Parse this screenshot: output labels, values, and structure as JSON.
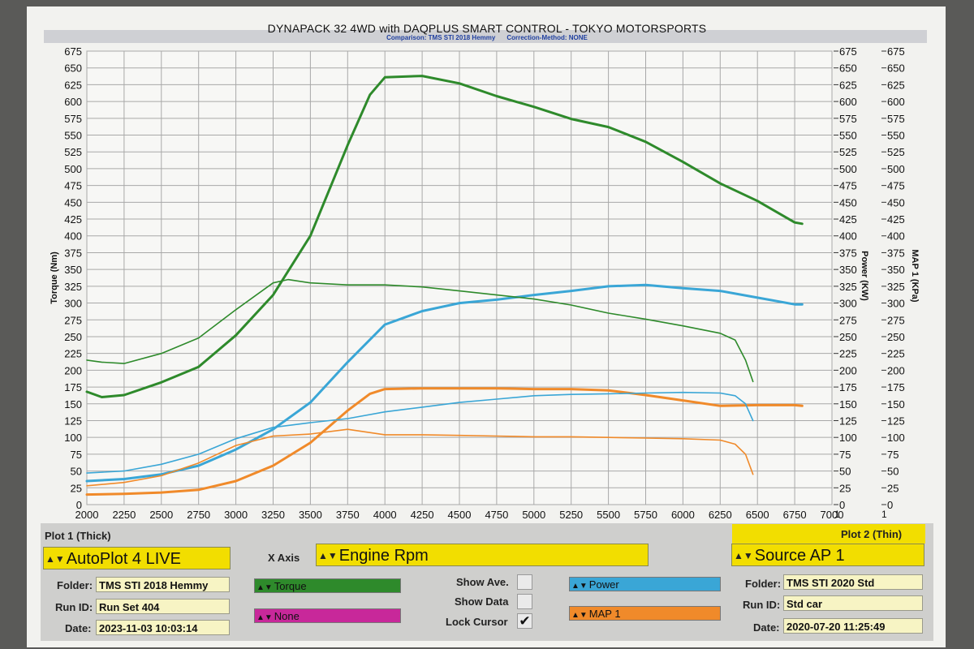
{
  "header": {
    "title": "DYNAPACK 32 4WD with DAQPLUS SMART CONTROL - TOKYO MOTORSPORTS",
    "comparison": "Comparison: TMS STI 2018 Hemmy",
    "correction": "Correction-Method: NONE"
  },
  "axes": {
    "left_label": "Torque (Nm)",
    "power_label": "Power (KW)",
    "map_label": "MAP 1 (KPa)",
    "y_ticks": [
      "0",
      "25",
      "50",
      "75",
      "100",
      "125",
      "150",
      "175",
      "200",
      "225",
      "250",
      "275",
      "300",
      "325",
      "350",
      "375",
      "400",
      "425",
      "450",
      "475",
      "500",
      "525",
      "550",
      "575",
      "600",
      "625",
      "650",
      "675"
    ],
    "x_ticks": [
      "2000",
      "2250",
      "2500",
      "2750",
      "3000",
      "3250",
      "3500",
      "3750",
      "4000",
      "4250",
      "4500",
      "4750",
      "5000",
      "5250",
      "5500",
      "5750",
      "6000",
      "6250",
      "6500",
      "6750",
      "7000"
    ],
    "power_extra_tick": "1",
    "map_extra_tick": "1"
  },
  "chart_data": {
    "type": "line",
    "x_unit": "Engine Rpm",
    "xlim": [
      2000,
      7000
    ],
    "ylim": [
      0,
      675
    ],
    "grid": true,
    "series": [
      {
        "name": "Torque",
        "plot": "Plot 1 (Thick)",
        "color": "#2e8a2b",
        "thick": true,
        "x": [
          2000,
          2100,
          2250,
          2500,
          2750,
          3000,
          3250,
          3500,
          3750,
          3900,
          4000,
          4250,
          4500,
          4750,
          5000,
          5250,
          5500,
          5750,
          6000,
          6250,
          6500,
          6750,
          6800
        ],
        "y": [
          168,
          160,
          163,
          182,
          205,
          252,
          312,
          400,
          535,
          610,
          636,
          638,
          627,
          608,
          592,
          574,
          562,
          540,
          510,
          478,
          452,
          420,
          418
        ]
      },
      {
        "name": "Power",
        "plot": "Plot 1 (Thick)",
        "color": "#3aa6d6",
        "thick": true,
        "x": [
          2000,
          2250,
          2500,
          2750,
          3000,
          3250,
          3500,
          3750,
          4000,
          4250,
          4500,
          4750,
          5000,
          5250,
          5500,
          5750,
          6000,
          6250,
          6500,
          6750,
          6800
        ],
        "y": [
          35,
          38,
          45,
          58,
          82,
          112,
          152,
          212,
          268,
          288,
          300,
          305,
          312,
          318,
          325,
          327,
          322,
          318,
          308,
          298,
          298
        ]
      },
      {
        "name": "MAP 1",
        "plot": "Plot 1 (Thick)",
        "color": "#f08a2a",
        "thick": true,
        "x": [
          2000,
          2250,
          2500,
          2750,
          3000,
          3250,
          3500,
          3750,
          3900,
          4000,
          4250,
          4500,
          4750,
          5000,
          5250,
          5500,
          5750,
          6000,
          6250,
          6500,
          6750,
          6800
        ],
        "y": [
          15,
          16,
          18,
          22,
          35,
          58,
          92,
          140,
          165,
          172,
          173,
          173,
          173,
          172,
          172,
          170,
          163,
          155,
          147,
          148,
          148,
          147
        ]
      },
      {
        "name": "Torque",
        "plot": "Plot 2 (Thin)",
        "color": "#2e8a2b",
        "thick": false,
        "x": [
          2000,
          2100,
          2250,
          2500,
          2750,
          3000,
          3250,
          3350,
          3500,
          3750,
          4000,
          4250,
          4500,
          4750,
          5000,
          5250,
          5500,
          5750,
          6000,
          6250,
          6350,
          6420,
          6470
        ],
        "y": [
          215,
          212,
          210,
          225,
          248,
          290,
          330,
          335,
          330,
          327,
          327,
          324,
          318,
          312,
          306,
          297,
          285,
          276,
          266,
          255,
          245,
          215,
          183
        ]
      },
      {
        "name": "Power",
        "plot": "Plot 2 (Thin)",
        "color": "#3aa6d6",
        "thick": false,
        "x": [
          2000,
          2250,
          2500,
          2750,
          3000,
          3250,
          3500,
          3750,
          4000,
          4250,
          4500,
          4750,
          5000,
          5250,
          5500,
          5750,
          6000,
          6250,
          6350,
          6420,
          6470
        ],
        "y": [
          47,
          50,
          60,
          75,
          98,
          115,
          122,
          128,
          138,
          145,
          152,
          157,
          162,
          164,
          165,
          166,
          167,
          166,
          162,
          150,
          125
        ]
      },
      {
        "name": "MAP 1",
        "plot": "Plot 2 (Thin)",
        "color": "#f08a2a",
        "thick": false,
        "x": [
          2000,
          2250,
          2500,
          2750,
          3000,
          3250,
          3500,
          3750,
          4000,
          4250,
          4500,
          4750,
          5000,
          5250,
          5500,
          5750,
          6000,
          6250,
          6350,
          6420,
          6470
        ],
        "y": [
          28,
          33,
          43,
          62,
          88,
          102,
          105,
          112,
          104,
          104,
          103,
          102,
          101,
          101,
          100,
          99,
          98,
          96,
          90,
          75,
          45
        ]
      }
    ]
  },
  "panel": {
    "plot1_title": "Plot 1 (Thick)",
    "plot2_title": "Plot 2 (Thin)",
    "source1": "AutoPlot 4 LIVE",
    "source2": "Source AP 1",
    "x_axis_label": "X Axis",
    "x_axis_value": "Engine Rpm",
    "folder_label": "Folder:",
    "runid_label": "Run ID:",
    "date_label": "Date:",
    "folder1": "TMS STI 2018 Hemmy",
    "runid1": "Run Set 404",
    "date1": "2023-11-03 10:03:14",
    "folder2": "TMS STI 2020 Std",
    "runid2": "Std car",
    "date2": "2020-07-20 11:25:49",
    "ch_torque": "Torque",
    "ch_none": "None",
    "ch_power": "Power",
    "ch_map": "MAP 1",
    "show_ave": "Show Ave.",
    "show_data": "Show Data",
    "lock_cursor": "Lock Cursor",
    "lock_checked": "✔",
    "color_torque": "#2e8a2b",
    "color_none": "#c8289a",
    "color_power": "#3aa6d6",
    "color_map": "#f08a2a"
  }
}
